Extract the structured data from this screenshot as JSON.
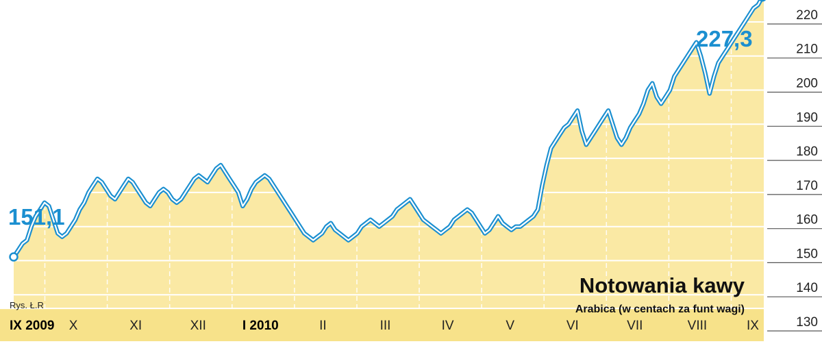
{
  "chart_data": {
    "type": "area",
    "title": "Notowania kawy",
    "subtitle": "Arabica (w centach za funt wagi)",
    "credit": "Rys. Ł.R",
    "ylim": [
      130,
      222
    ],
    "yticks": [
      "130",
      "140",
      "150",
      "160",
      "170",
      "180",
      "190",
      "200",
      "210",
      "220"
    ],
    "months": [
      "IX 2009",
      "X",
      "XI",
      "XII",
      "I 2010",
      "II",
      "III",
      "IV",
      "V",
      "VI",
      "VII",
      "VIII",
      "IX"
    ],
    "months_bold": [
      0,
      4
    ],
    "start_label": "151,1",
    "end_label": "227,3",
    "series": [
      {
        "values": [
          151.1,
          153,
          155,
          156,
          160,
          163,
          165,
          167,
          166,
          162,
          158,
          157,
          158,
          160,
          162,
          165,
          167,
          170,
          172,
          174,
          173,
          171,
          169,
          168,
          170,
          172,
          174,
          173,
          171,
          169,
          167,
          166,
          168,
          170,
          171,
          170,
          168,
          167,
          168,
          170,
          172,
          174,
          175,
          174,
          173,
          175,
          177,
          178,
          176,
          174,
          172,
          170,
          166,
          168,
          171,
          173,
          174,
          175,
          174,
          172,
          170,
          168,
          166,
          164,
          162,
          160,
          158,
          157,
          156,
          157,
          158,
          160,
          161,
          159,
          158,
          157,
          156,
          157,
          158,
          160,
          161,
          162,
          161,
          160,
          161,
          162,
          163,
          165,
          166,
          167,
          168,
          166,
          164,
          162,
          161,
          160,
          159,
          158,
          159,
          160,
          162,
          163,
          164,
          165,
          164,
          162,
          160,
          158,
          159,
          161,
          163,
          161,
          160,
          159,
          160,
          160,
          161,
          162,
          163,
          165,
          172,
          178,
          183,
          185,
          187,
          189,
          190,
          192,
          194,
          188,
          184,
          186,
          188,
          190,
          192,
          194,
          190,
          186,
          184,
          186,
          189,
          191,
          193,
          196,
          200,
          202,
          198,
          196,
          198,
          200,
          204,
          206,
          208,
          210,
          212,
          214,
          210,
          205,
          199,
          204,
          208,
          210,
          212,
          214,
          216,
          218,
          220,
          222,
          224,
          225,
          227.3
        ]
      }
    ]
  }
}
